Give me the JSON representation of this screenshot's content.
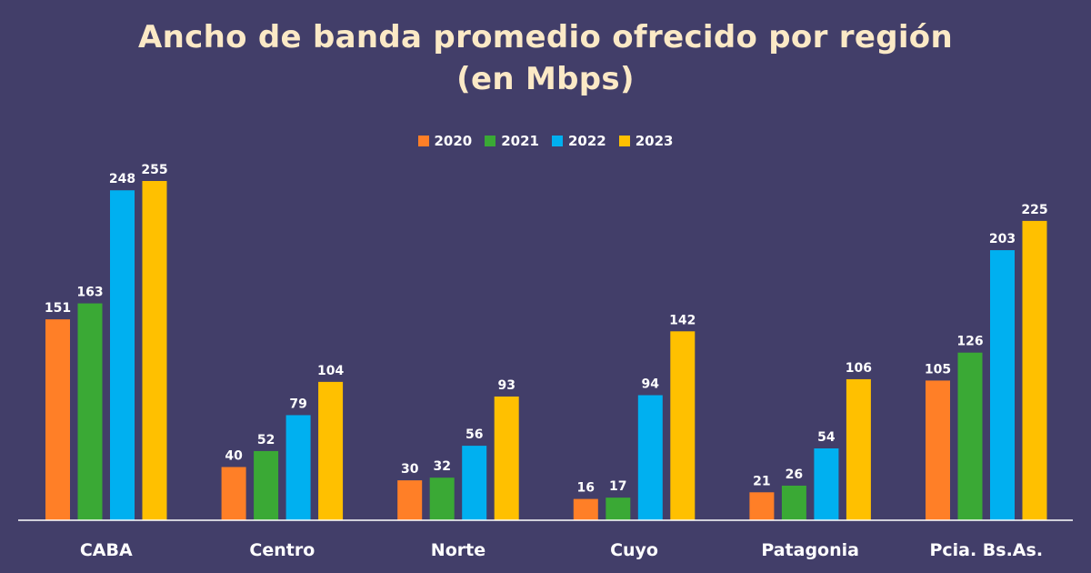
{
  "chart_data": {
    "type": "bar",
    "title_line1": "Ancho de banda promedio ofrecido por región",
    "title_line2": "(en Mbps)",
    "categories": [
      "CABA",
      "Centro",
      "Norte",
      "Cuyo",
      "Patagonia",
      "Pcia. Bs.As."
    ],
    "series": [
      {
        "name": "2020",
        "color": "#ff7f27",
        "values": [
          151,
          40,
          30,
          16,
          21,
          105
        ]
      },
      {
        "name": "2021",
        "color": "#3aa935",
        "values": [
          163,
          52,
          32,
          17,
          26,
          126
        ]
      },
      {
        "name": "2022",
        "color": "#00b0f0",
        "values": [
          248,
          79,
          56,
          94,
          54,
          203
        ]
      },
      {
        "name": "2023",
        "color": "#ffc000",
        "values": [
          255,
          104,
          93,
          142,
          106,
          225
        ]
      }
    ],
    "ylim": [
      0,
      255
    ],
    "legend_position": "top-center",
    "grid": false
  }
}
